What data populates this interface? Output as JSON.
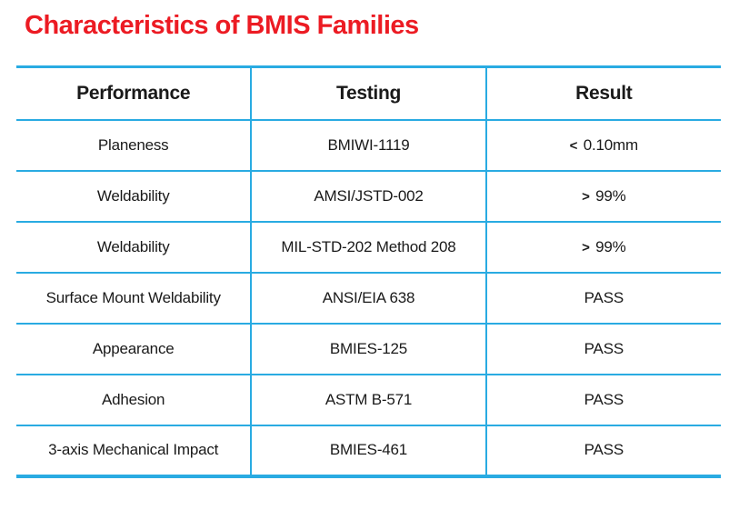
{
  "title": "Characteristics of BMIS Families",
  "colors": {
    "title": "#EC1B23",
    "table_border": "#29ABE2",
    "text": "#1A1A1A"
  },
  "table": {
    "columns": [
      "Performance",
      "Testing",
      "Result"
    ],
    "rows": [
      {
        "performance": "Planeness",
        "testing": "BMIWI-1119",
        "result": "< 0.10mm"
      },
      {
        "performance": "Weldability",
        "testing": "AMSI/JSTD-002",
        "result": "> 99%"
      },
      {
        "performance": "Weldability",
        "testing": "MIL-STD-202 Method 208",
        "result": "> 99%"
      },
      {
        "performance": "Surface Mount Weldability",
        "testing": "ANSI/EIA 638",
        "result": "PASS"
      },
      {
        "performance": "Appearance",
        "testing": "BMIES-125",
        "result": "PASS"
      },
      {
        "performance": "Adhesion",
        "testing": "ASTM B-571",
        "result": "PASS"
      },
      {
        "performance": "3-axis Mechanical Impact",
        "testing": "BMIES-461",
        "result": "PASS"
      }
    ]
  }
}
